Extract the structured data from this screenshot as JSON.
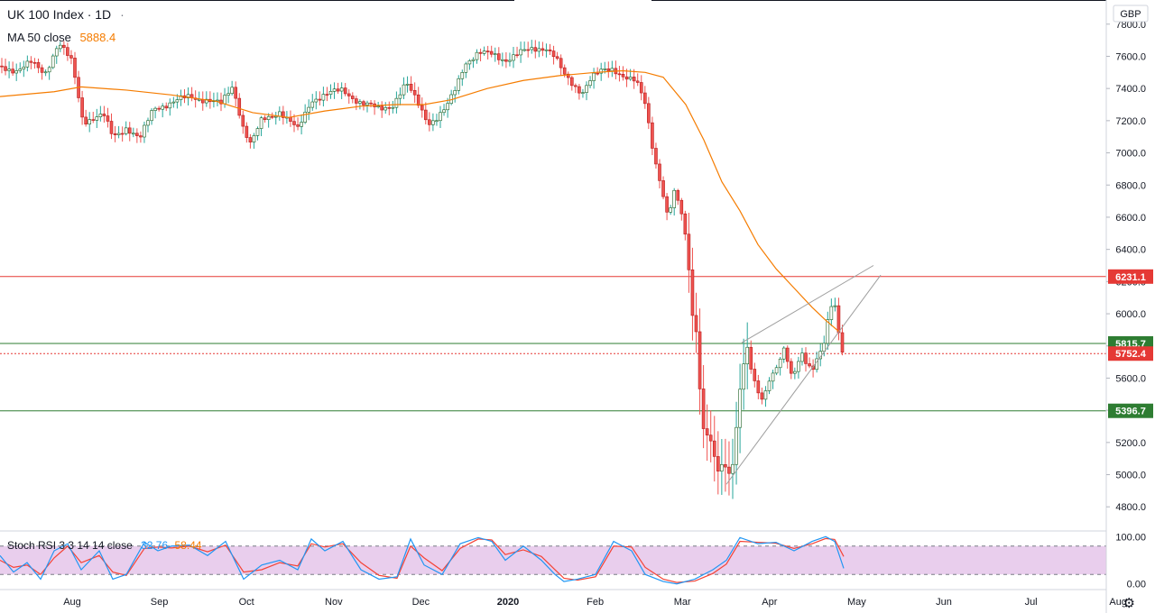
{
  "header": {
    "title": "UK 100 Index · 1D",
    "ma_label": "MA 50 close",
    "ma_value": "5888.4"
  },
  "currency_badge": "GBP",
  "chart_data": {
    "type": "candlestick",
    "symbol": "UK 100 Index",
    "interval": "1D",
    "currency": "GBP",
    "ylim": [
      4650,
      7950
    ],
    "y_ticks": [
      "7800.0",
      "7600.0",
      "7400.0",
      "7200.0",
      "7000.0",
      "6800.0",
      "6600.0",
      "6400.0",
      "6200.0",
      "6000.0",
      "5800.0",
      "5600.0",
      "5400.0",
      "5200.0",
      "5000.0",
      "4800.0"
    ],
    "x_ticks": [
      "Aug",
      "Sep",
      "Oct",
      "Nov",
      "Dec",
      "2020",
      "Feb",
      "Mar",
      "Apr",
      "May",
      "Jun",
      "Jul",
      "Aug"
    ],
    "price_path": [
      [
        0,
        7540
      ],
      [
        20,
        7510
      ],
      [
        35,
        7560
      ],
      [
        50,
        7500
      ],
      [
        65,
        7680
      ],
      [
        80,
        7560
      ],
      [
        92,
        7200
      ],
      [
        115,
        7230
      ],
      [
        125,
        7100
      ],
      [
        140,
        7160
      ],
      [
        155,
        7080
      ],
      [
        170,
        7280
      ],
      [
        190,
        7310
      ],
      [
        210,
        7350
      ],
      [
        230,
        7330
      ],
      [
        245,
        7300
      ],
      [
        258,
        7420
      ],
      [
        270,
        7150
      ],
      [
        278,
        7050
      ],
      [
        290,
        7200
      ],
      [
        310,
        7260
      ],
      [
        330,
        7140
      ],
      [
        345,
        7330
      ],
      [
        360,
        7360
      ],
      [
        380,
        7390
      ],
      [
        400,
        7310
      ],
      [
        420,
        7270
      ],
      [
        435,
        7300
      ],
      [
        450,
        7430
      ],
      [
        465,
        7290
      ],
      [
        475,
        7190
      ],
      [
        485,
        7220
      ],
      [
        495,
        7280
      ],
      [
        505,
        7400
      ],
      [
        515,
        7560
      ],
      [
        530,
        7620
      ],
      [
        545,
        7610
      ],
      [
        560,
        7580
      ],
      [
        575,
        7620
      ],
      [
        590,
        7640
      ],
      [
        605,
        7660
      ],
      [
        615,
        7600
      ],
      [
        625,
        7480
      ],
      [
        635,
        7420
      ],
      [
        645,
        7380
      ],
      [
        655,
        7470
      ],
      [
        665,
        7500
      ],
      [
        680,
        7520
      ],
      [
        692,
        7480
      ],
      [
        705,
        7440
      ],
      [
        715,
        7300
      ],
      [
        725,
        6980
      ],
      [
        733,
        6800
      ],
      [
        740,
        6600
      ],
      [
        748,
        6760
      ],
      [
        755,
        6620
      ],
      [
        762,
        6400
      ],
      [
        767,
        6000
      ],
      [
        772,
        5900
      ],
      [
        778,
        5300
      ],
      [
        784,
        5250
      ],
      [
        790,
        5150
      ],
      [
        796,
        5000
      ],
      [
        802,
        5080
      ],
      [
        810,
        4980
      ],
      [
        816,
        5300
      ],
      [
        822,
        5650
      ],
      [
        828,
        5780
      ],
      [
        834,
        5600
      ],
      [
        840,
        5500
      ],
      [
        846,
        5460
      ],
      [
        852,
        5600
      ],
      [
        858,
        5650
      ],
      [
        864,
        5720
      ],
      [
        870,
        5790
      ],
      [
        876,
        5600
      ],
      [
        882,
        5640
      ],
      [
        888,
        5760
      ],
      [
        894,
        5700
      ],
      [
        900,
        5660
      ],
      [
        906,
        5740
      ],
      [
        912,
        5780
      ],
      [
        918,
        5960
      ],
      [
        924,
        6100
      ],
      [
        928,
        5920
      ],
      [
        932,
        5800
      ],
      [
        935,
        5752
      ]
    ],
    "ma50_path": [
      [
        0,
        7350
      ],
      [
        60,
        7380
      ],
      [
        90,
        7410
      ],
      [
        140,
        7390
      ],
      [
        190,
        7360
      ],
      [
        240,
        7320
      ],
      [
        280,
        7250
      ],
      [
        320,
        7220
      ],
      [
        360,
        7260
      ],
      [
        400,
        7290
      ],
      [
        440,
        7300
      ],
      [
        470,
        7300
      ],
      [
        500,
        7330
      ],
      [
        540,
        7400
      ],
      [
        580,
        7450
      ],
      [
        620,
        7480
      ],
      [
        660,
        7500
      ],
      [
        690,
        7510
      ],
      [
        715,
        7500
      ],
      [
        735,
        7470
      ],
      [
        760,
        7300
      ],
      [
        780,
        7080
      ],
      [
        800,
        6820
      ],
      [
        820,
        6640
      ],
      [
        840,
        6430
      ],
      [
        860,
        6280
      ],
      [
        880,
        6160
      ],
      [
        900,
        6040
      ],
      [
        915,
        5960
      ],
      [
        930,
        5888
      ]
    ],
    "horizontal_levels": [
      {
        "value": 6231.1,
        "label": "6231.1",
        "color": "#e53935",
        "style": "solid"
      },
      {
        "value": 5815.7,
        "label": "5815.7",
        "color": "#2e7d32",
        "style": "solid"
      },
      {
        "value": 5752.4,
        "label": "5752.4",
        "color": "#e53935",
        "style": "dotted"
      },
      {
        "value": 5396.7,
        "label": "5396.7",
        "color": "#2e7d32",
        "style": "solid"
      }
    ],
    "wedge_lines": [
      {
        "from": [
          822,
          5820
        ],
        "to": [
          968,
          6300
        ]
      },
      {
        "from": [
          805,
          4940
        ],
        "to": [
          976,
          6240
        ]
      }
    ],
    "grid": false,
    "stoch_rsi": {
      "label": "Stoch RSI 3 3 14 14 close",
      "k": "32.76",
      "d": "58.44",
      "ticks": [
        "100.00",
        "0.00"
      ],
      "band": [
        20,
        80
      ],
      "ylim": [
        -12,
        112
      ],
      "k_color": "#2196f3",
      "d_color": "#f44336",
      "k_path": [
        [
          0,
          60
        ],
        [
          15,
          25
        ],
        [
          30,
          45
        ],
        [
          45,
          10
        ],
        [
          60,
          70
        ],
        [
          75,
          85
        ],
        [
          90,
          30
        ],
        [
          110,
          70
        ],
        [
          125,
          10
        ],
        [
          140,
          20
        ],
        [
          160,
          88
        ],
        [
          175,
          70
        ],
        [
          190,
          80
        ],
        [
          210,
          82
        ],
        [
          230,
          60
        ],
        [
          250,
          90
        ],
        [
          270,
          10
        ],
        [
          290,
          40
        ],
        [
          310,
          50
        ],
        [
          330,
          30
        ],
        [
          345,
          95
        ],
        [
          360,
          70
        ],
        [
          380,
          90
        ],
        [
          400,
          30
        ],
        [
          420,
          10
        ],
        [
          440,
          15
        ],
        [
          455,
          95
        ],
        [
          470,
          40
        ],
        [
          490,
          20
        ],
        [
          510,
          85
        ],
        [
          530,
          98
        ],
        [
          545,
          90
        ],
        [
          560,
          50
        ],
        [
          580,
          80
        ],
        [
          600,
          50
        ],
        [
          615,
          20
        ],
        [
          625,
          5
        ],
        [
          640,
          10
        ],
        [
          660,
          20
        ],
        [
          680,
          90
        ],
        [
          700,
          70
        ],
        [
          715,
          20
        ],
        [
          735,
          5
        ],
        [
          750,
          0
        ],
        [
          770,
          10
        ],
        [
          790,
          30
        ],
        [
          805,
          50
        ],
        [
          820,
          98
        ],
        [
          840,
          85
        ],
        [
          860,
          88
        ],
        [
          880,
          70
        ],
        [
          900,
          90
        ],
        [
          915,
          100
        ],
        [
          925,
          90
        ],
        [
          935,
          33
        ]
      ],
      "d_path": [
        [
          0,
          50
        ],
        [
          15,
          35
        ],
        [
          30,
          40
        ],
        [
          45,
          20
        ],
        [
          60,
          55
        ],
        [
          75,
          80
        ],
        [
          90,
          45
        ],
        [
          110,
          60
        ],
        [
          125,
          25
        ],
        [
          140,
          18
        ],
        [
          160,
          75
        ],
        [
          175,
          78
        ],
        [
          190,
          76
        ],
        [
          210,
          80
        ],
        [
          230,
          68
        ],
        [
          250,
          82
        ],
        [
          270,
          25
        ],
        [
          290,
          30
        ],
        [
          310,
          45
        ],
        [
          330,
          38
        ],
        [
          345,
          85
        ],
        [
          360,
          78
        ],
        [
          380,
          85
        ],
        [
          400,
          45
        ],
        [
          420,
          18
        ],
        [
          440,
          12
        ],
        [
          455,
          80
        ],
        [
          470,
          55
        ],
        [
          490,
          28
        ],
        [
          510,
          75
        ],
        [
          530,
          95
        ],
        [
          545,
          93
        ],
        [
          560,
          62
        ],
        [
          580,
          72
        ],
        [
          600,
          58
        ],
        [
          615,
          30
        ],
        [
          625,
          12
        ],
        [
          640,
          8
        ],
        [
          660,
          15
        ],
        [
          680,
          80
        ],
        [
          700,
          78
        ],
        [
          715,
          35
        ],
        [
          735,
          10
        ],
        [
          750,
          3
        ],
        [
          770,
          6
        ],
        [
          790,
          22
        ],
        [
          805,
          42
        ],
        [
          820,
          90
        ],
        [
          840,
          88
        ],
        [
          860,
          86
        ],
        [
          880,
          75
        ],
        [
          900,
          85
        ],
        [
          915,
          96
        ],
        [
          925,
          94
        ],
        [
          935,
          58
        ]
      ]
    }
  }
}
